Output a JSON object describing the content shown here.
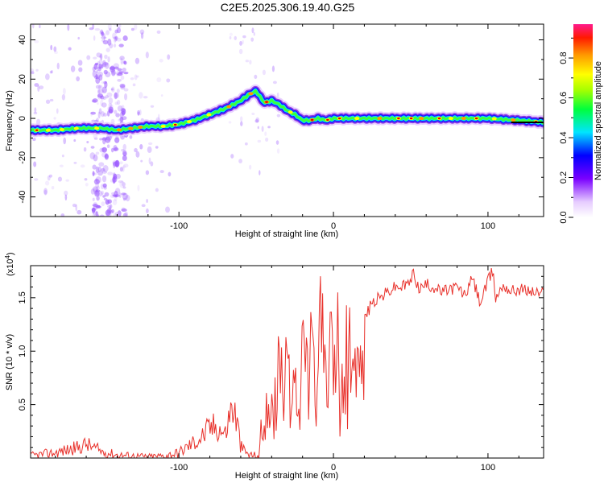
{
  "title": "C2E5.2025.306.19.40.G25",
  "colors": {
    "snr_line": "#e8302a",
    "axis": "#000000",
    "ridge_core": "#e00000",
    "ridge_halo": "#1a1aff",
    "scatter": "#9b59ff"
  },
  "chart_data": [
    {
      "type": "heatmap",
      "name": "spectrogram",
      "xlabel": "Height of straight line (km)",
      "ylabel": "Frequency (Hz)",
      "xlim": [
        -196,
        136
      ],
      "ylim": [
        -50,
        48
      ],
      "xticks": [
        -100,
        0,
        100
      ],
      "xtick_labels": [
        "-100",
        "0",
        "100"
      ],
      "yticks": [
        -40,
        -20,
        0,
        20,
        40
      ],
      "ytick_labels": [
        "-40",
        "-20",
        "0",
        "20",
        "40"
      ],
      "ridge": {
        "x": [
          -196,
          -180,
          -165,
          -150,
          -140,
          -130,
          -120,
          -110,
          -100,
          -90,
          -80,
          -70,
          -60,
          -55,
          -50,
          -45,
          -40,
          -35,
          -30,
          -25,
          -20,
          -15,
          -10,
          -5,
          0,
          20,
          40,
          60,
          80,
          100,
          120,
          136
        ],
        "y": [
          -6,
          -6,
          -5,
          -5,
          -6,
          -5,
          -4,
          -4,
          -3,
          -1,
          2,
          5,
          9,
          12,
          14,
          8,
          9,
          7,
          4,
          2,
          -1,
          -1,
          0,
          -1,
          0,
          0,
          0,
          0,
          0,
          0,
          -1,
          -2
        ]
      },
      "colorbar": {
        "label": "Normalized spectral amplitude",
        "range": [
          0.0,
          0.97
        ],
        "ticks": [
          0.0,
          0.2,
          0.4,
          0.6,
          0.8
        ],
        "tick_labels": [
          "0.0",
          "0.2",
          "0.4",
          "0.6",
          "0.8"
        ]
      }
    },
    {
      "type": "line",
      "name": "snr",
      "xlabel": "Height of straight line (km)",
      "ylabel": "SNR (10 * v/v)",
      "scale_label": "(x10",
      "scale_exp": "4",
      "scale_close": ")",
      "xlim": [
        -196,
        136
      ],
      "ylim": [
        0,
        1.8
      ],
      "xticks": [
        -100,
        0,
        100
      ],
      "xtick_labels": [
        "-100",
        "0",
        "100"
      ],
      "yticks": [
        0.5,
        1.0,
        1.5
      ],
      "ytick_labels": [
        "0.5",
        "1.0",
        "1.5"
      ],
      "series": [
        {
          "name": "SNR",
          "x": [
            -196,
            -180,
            -165,
            -160,
            -150,
            -140,
            -130,
            -120,
            -110,
            -100,
            -95,
            -90,
            -85,
            -80,
            -75,
            -70,
            -67,
            -65,
            -62,
            -60,
            -55,
            -50,
            -47,
            -45,
            -42,
            -40,
            -37,
            -35,
            -32,
            -30,
            -27,
            -25,
            -22,
            -20,
            -17,
            -15,
            -12,
            -10,
            -7,
            -5,
            -2,
            0,
            3,
            5,
            8,
            10,
            13,
            15,
            20,
            25,
            30,
            35,
            40,
            45,
            50,
            52,
            55,
            60,
            65,
            70,
            75,
            80,
            85,
            90,
            95,
            100,
            103,
            105,
            110,
            115,
            120,
            125,
            130,
            136
          ],
          "y": [
            0.02,
            0.05,
            0.1,
            0.13,
            0.06,
            0.03,
            0.02,
            0.01,
            0.02,
            0.05,
            0.1,
            0.15,
            0.2,
            0.28,
            0.3,
            0.22,
            0.42,
            0.48,
            0.3,
            0.1,
            0.03,
            0.02,
            0.06,
            0.3,
            0.5,
            0.75,
            0.55,
            0.95,
            0.7,
            1.15,
            0.6,
            0.95,
            0.2,
            1.25,
            0.7,
            1.2,
            0.6,
            1.1,
            1.7,
            0.9,
            1.2,
            1.0,
            1.3,
            0.8,
            1.25,
            1.3,
            1.0,
            1.35,
            1.3,
            1.45,
            1.5,
            1.55,
            1.6,
            1.6,
            1.65,
            1.75,
            1.58,
            1.62,
            1.6,
            1.55,
            1.58,
            1.6,
            1.52,
            1.68,
            1.45,
            1.65,
            1.75,
            1.5,
            1.62,
            1.56,
            1.58,
            1.57,
            1.55,
            1.54
          ]
        }
      ]
    }
  ]
}
